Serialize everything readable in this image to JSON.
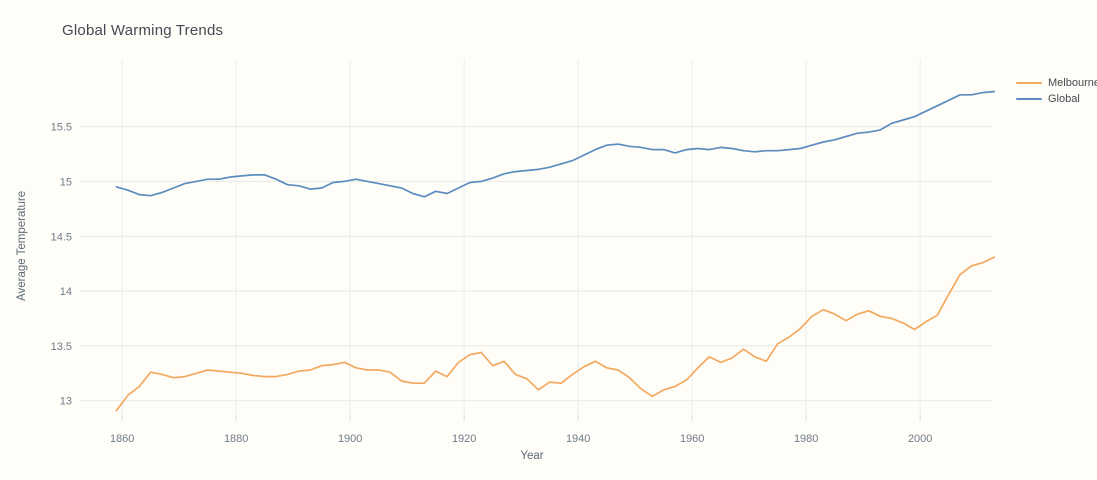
{
  "page": {
    "background": "#fffdf8"
  },
  "chart_data": {
    "type": "line",
    "title": "Global Warming Trends",
    "xlabel": "Year",
    "ylabel": "Average Temperature",
    "grid": true,
    "legend_position": "top-right",
    "xlim": [
      1852.6,
      2012.6
    ],
    "ylim": [
      12.87,
      16.08
    ],
    "x_ticks": [
      1860,
      1880,
      1900,
      1920,
      1940,
      1960,
      1980,
      2000
    ],
    "x_tick_labels": [
      "1860",
      "1880",
      "1900",
      "1920",
      "1940",
      "1960",
      "1980",
      "2000"
    ],
    "y_ticks": [
      13,
      13.5,
      14,
      14.5,
      15,
      15.5
    ],
    "y_tick_labels": [
      "13",
      "13.5",
      "14",
      "14.5",
      "15",
      "15.5"
    ],
    "colors": {
      "grid_horizontal": "#e7e8e5",
      "grid_vertical": "#e9eef4",
      "tick_mark": "#d5dde4",
      "axis_text": "#6e7b87"
    },
    "x": [
      1859,
      1861,
      1863,
      1865,
      1867,
      1869,
      1871,
      1873,
      1875,
      1877,
      1879,
      1881,
      1883,
      1885,
      1887,
      1889,
      1891,
      1893,
      1895,
      1897,
      1899,
      1901,
      1903,
      1905,
      1907,
      1909,
      1911,
      1913,
      1915,
      1917,
      1919,
      1921,
      1923,
      1925,
      1927,
      1929,
      1931,
      1933,
      1935,
      1937,
      1939,
      1941,
      1943,
      1945,
      1947,
      1949,
      1951,
      1953,
      1955,
      1957,
      1959,
      1961,
      1963,
      1965,
      1967,
      1969,
      1971,
      1973,
      1975,
      1977,
      1979,
      1981,
      1983,
      1985,
      1987,
      1989,
      1991,
      1993,
      1995,
      1997,
      1999,
      2001,
      2003,
      2005,
      2007,
      2009,
      2011,
      2013
    ],
    "series": [
      {
        "name": "Melbourne",
        "color": "#f2a95f",
        "values": [
          12.91,
          13.05,
          13.13,
          13.26,
          13.24,
          13.21,
          13.22,
          13.25,
          13.28,
          13.27,
          13.26,
          13.25,
          13.23,
          13.22,
          13.22,
          13.24,
          13.27,
          13.28,
          13.32,
          13.33,
          13.35,
          13.3,
          13.28,
          13.28,
          13.26,
          13.18,
          13.16,
          13.16,
          13.27,
          13.22,
          13.35,
          13.42,
          13.44,
          13.32,
          13.36,
          13.24,
          13.2,
          13.1,
          13.17,
          13.16,
          13.24,
          13.31,
          13.36,
          13.3,
          13.28,
          13.21,
          13.11,
          13.04,
          13.1,
          13.13,
          13.19,
          13.3,
          13.4,
          13.35,
          13.39,
          13.47,
          13.4,
          13.36,
          13.52,
          13.58,
          13.66,
          13.77,
          13.83,
          13.79,
          13.73,
          13.79,
          13.82,
          13.77,
          13.75,
          13.71,
          13.65,
          13.72,
          13.78,
          13.97,
          14.15,
          14.23,
          14.26,
          14.31
        ]
      },
      {
        "name": "Global",
        "color": "#5c8dc0",
        "values": [
          14.95,
          14.92,
          14.88,
          14.87,
          14.9,
          14.94,
          14.98,
          15.0,
          15.02,
          15.02,
          15.04,
          15.05,
          15.06,
          15.06,
          15.02,
          14.97,
          14.96,
          14.93,
          14.94,
          14.99,
          15.0,
          15.02,
          15.0,
          14.98,
          14.96,
          14.94,
          14.89,
          14.86,
          14.91,
          14.89,
          14.94,
          14.99,
          15.0,
          15.03,
          15.07,
          15.09,
          15.1,
          15.11,
          15.13,
          15.16,
          15.19,
          15.24,
          15.29,
          15.33,
          15.34,
          15.32,
          15.31,
          15.29,
          15.29,
          15.26,
          15.29,
          15.3,
          15.29,
          15.31,
          15.3,
          15.28,
          15.27,
          15.28,
          15.28,
          15.29,
          15.3,
          15.33,
          15.36,
          15.38,
          15.41,
          15.44,
          15.45,
          15.47,
          15.53,
          15.56,
          15.59,
          15.64,
          15.69,
          15.74,
          15.79,
          15.79,
          15.81,
          15.82
        ]
      }
    ]
  }
}
